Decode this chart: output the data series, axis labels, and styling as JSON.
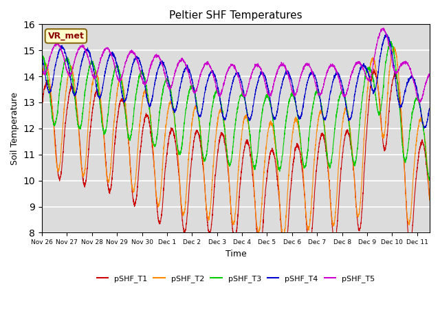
{
  "title": "Peltier SHF Temperatures",
  "ylabel": "Soil Temperature",
  "xlabel": "Time",
  "annotation": "VR_met",
  "ylim": [
    8.0,
    16.0
  ],
  "yticks": [
    8.0,
    9.0,
    10.0,
    11.0,
    12.0,
    13.0,
    14.0,
    15.0,
    16.0
  ],
  "xtick_labels": [
    "Nov 26",
    "Nov 27",
    "Nov 28",
    "Nov 29",
    "Nov 30",
    "Dec 1",
    "Dec 2",
    "Dec 3",
    "Dec 4",
    "Dec 5",
    "Dec 6",
    "Dec 7",
    "Dec 8",
    "Dec 9",
    "Dec 10",
    "Dec 11"
  ],
  "legend_labels": [
    "pSHF_T1",
    "pSHF_T2",
    "pSHF_T3",
    "pSHF_T4",
    "pSHF_T5"
  ],
  "colors": [
    "#cc0000",
    "#ff8800",
    "#00cc00",
    "#0000cc",
    "#cc00cc"
  ],
  "plot_bg_color": "#dcdcdc",
  "n_points": 3360,
  "duration_days": 15.5
}
